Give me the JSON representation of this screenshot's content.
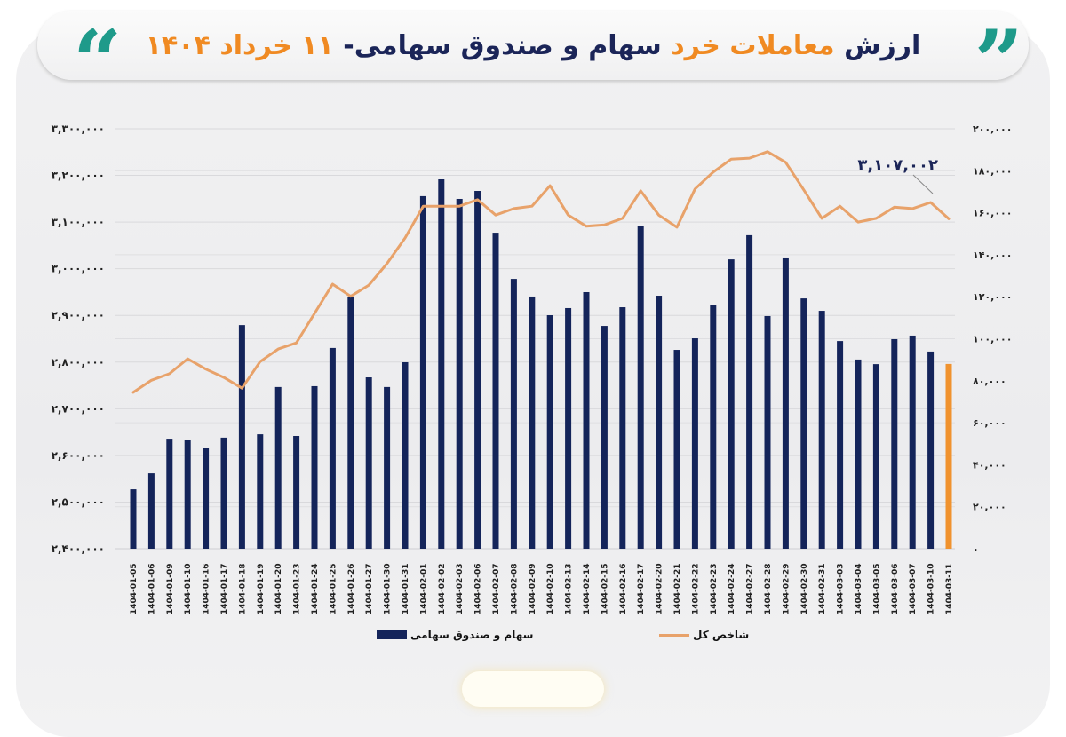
{
  "header": {
    "title_parts": [
      {
        "text": "ارزش ",
        "highlight": false
      },
      {
        "text": "معاملات خرد",
        "highlight": true
      },
      {
        "text": " سهام و صندوق سهامی- ",
        "highlight": false
      },
      {
        "text": "۱۱ خرداد ۱۴۰۴",
        "highlight": true
      }
    ],
    "title_full": "ارزش معاملات خرد سهام و صندوق سهامی- ۱۱ خرداد ۱۴۰۴",
    "open_quote_glyph": "“",
    "close_quote_glyph": "”"
  },
  "colors": {
    "bar": "#14245a",
    "bar_highlight": "#f0922e",
    "line": "#e8a26a",
    "title_dark": "#1b2558",
    "title_accent": "#f08a22",
    "quote": "#1e9a8a",
    "grid": "#d9d9dc"
  },
  "legend": {
    "bars_label": "سهام و صندوق سهامی",
    "line_label": "شاخص کل"
  },
  "annotation": {
    "text": "۳,۱۰۷,۰۰۲",
    "value": 3107002
  },
  "axes": {
    "left_ticks": [
      "۳,۳۰۰,۰۰۰",
      "۳,۲۰۰,۰۰۰",
      "۳,۱۰۰,۰۰۰",
      "۳,۰۰۰,۰۰۰",
      "۲,۹۰۰,۰۰۰",
      "۲,۸۰۰,۰۰۰",
      "۲,۷۰۰,۰۰۰",
      "۲,۶۰۰,۰۰۰",
      "۲,۵۰۰,۰۰۰",
      "۲,۴۰۰,۰۰۰"
    ],
    "right_ticks": [
      "۲۰۰,۰۰۰",
      "۱۸۰,۰۰۰",
      "۱۶۰,۰۰۰",
      "۱۴۰,۰۰۰",
      "۱۲۰,۰۰۰",
      "۱۰۰,۰۰۰",
      "۸۰,۰۰۰",
      "۶۰,۰۰۰",
      "۴۰,۰۰۰",
      "۲۰,۰۰۰",
      "۰"
    ]
  },
  "chart_data": {
    "type": "bar",
    "title": "ارزش معاملات خرد سهام و صندوق سهامی- ۱۱ خرداد ۱۴۰۴",
    "xlabel": "",
    "ylabel": "",
    "grid": true,
    "legend_position": "bottom",
    "categories": [
      "1404-01-05",
      "1404-01-06",
      "1404-01-09",
      "1404-01-10",
      "1404-01-16",
      "1404-01-17",
      "1404-01-18",
      "1404-01-19",
      "1404-01-20",
      "1404-01-23",
      "1404-01-24",
      "1404-01-25",
      "1404-01-26",
      "1404-01-27",
      "1404-01-30",
      "1404-01-31",
      "1404-02-01",
      "1404-02-02",
      "1404-02-03",
      "1404-02-06",
      "1404-02-07",
      "1404-02-08",
      "1404-02-09",
      "1404-02-10",
      "1404-02-13",
      "1404-02-14",
      "1404-02-15",
      "1404-02-16",
      "1404-02-17",
      "1404-02-20",
      "1404-02-21",
      "1404-02-22",
      "1404-02-23",
      "1404-02-24",
      "1404-02-27",
      "1404-02-28",
      "1404-02-29",
      "1404-02-30",
      "1404-02-31",
      "1404-03-03",
      "1404-03-04",
      "1404-03-05",
      "1404-03-06",
      "1404-03-07",
      "1404-03-10",
      "1404-03-11"
    ],
    "series": [
      {
        "name": "سهام و صندوق سهامی",
        "type": "bar",
        "axis": "right",
        "values": [
          28300,
          35900,
          52400,
          52000,
          48200,
          52900,
          106500,
          54500,
          77000,
          53700,
          77400,
          95600,
          119700,
          81600,
          77000,
          88800,
          167900,
          175900,
          166600,
          170400,
          150500,
          128500,
          120100,
          111200,
          114600,
          122200,
          106100,
          115000,
          153500,
          120500,
          94700,
          100200,
          115900,
          137800,
          149300,
          110800,
          138700,
          119200,
          113300,
          98900,
          90100,
          87900,
          99800,
          101500,
          93900,
          88000
        ]
      },
      {
        "name": "شاخص کل",
        "type": "line",
        "axis": "left",
        "values": [
          2735000,
          2761000,
          2775000,
          2807000,
          2785000,
          2767000,
          2744000,
          2801000,
          2828000,
          2841000,
          2904000,
          2967000,
          2941000,
          2965000,
          3011000,
          3066000,
          3134000,
          3134000,
          3134000,
          3148000,
          3115000,
          3129000,
          3134000,
          3178000,
          3115000,
          3091000,
          3094000,
          3108000,
          3167000,
          3115000,
          3089000,
          3171000,
          3207000,
          3235000,
          3237000,
          3251000,
          3228000,
          3169000,
          3108000,
          3134000,
          3100000,
          3108000,
          3132000,
          3129000,
          3142000,
          3107002
        ]
      }
    ],
    "ylim_left": [
      2400000,
      3300000
    ],
    "ylim_right": [
      0,
      200000
    ],
    "highlighted_last_bar": true,
    "annotations": [
      {
        "text": "3,107,002",
        "target": "last line point"
      }
    ]
  }
}
